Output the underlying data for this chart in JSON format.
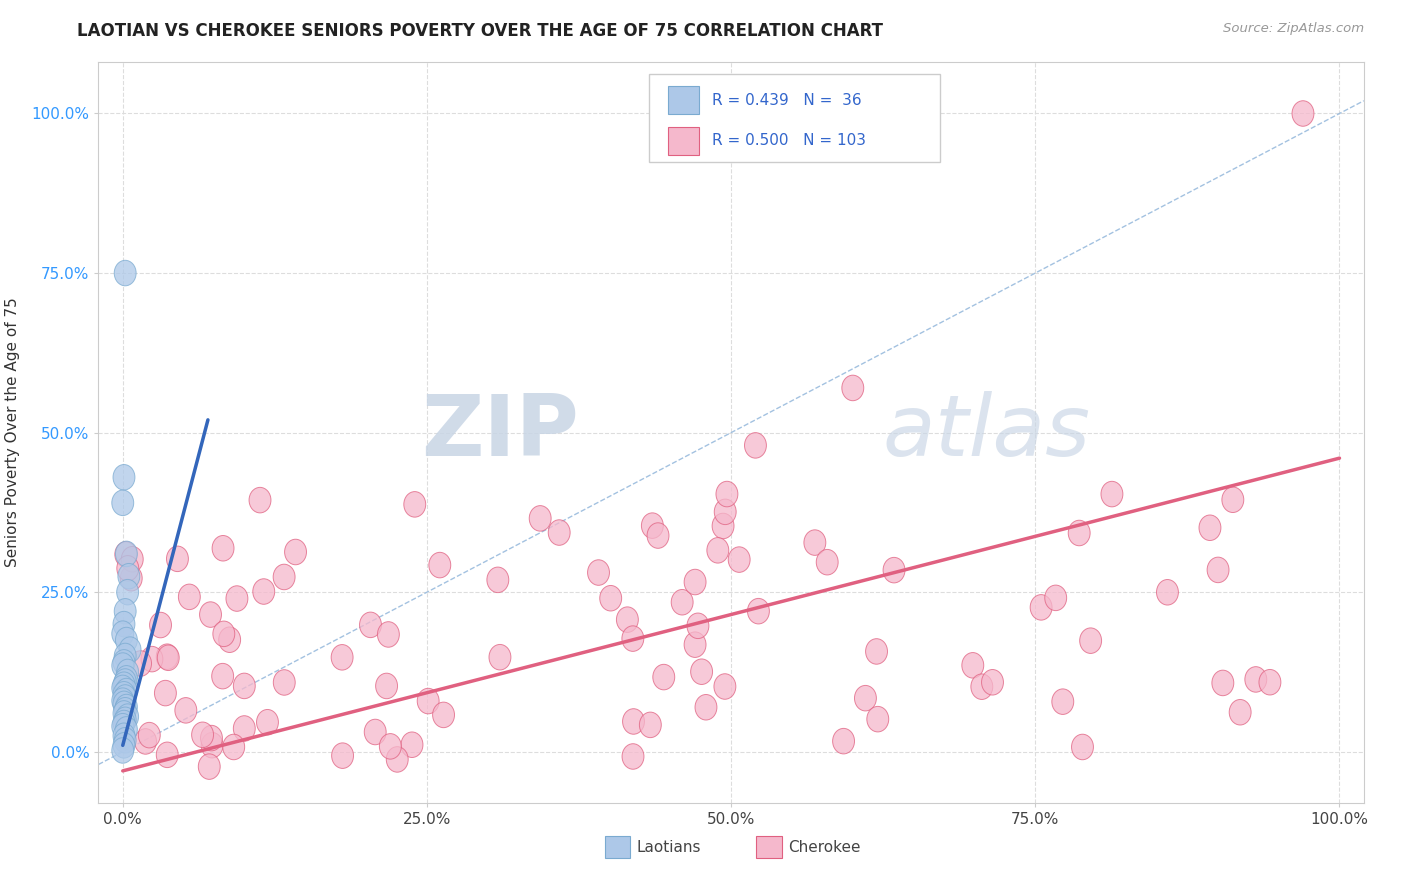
{
  "title": "LAOTIAN VS CHEROKEE SENIORS POVERTY OVER THE AGE OF 75 CORRELATION CHART",
  "source_text": "Source: ZipAtlas.com",
  "ylabel": "Seniors Poverty Over the Age of 75",
  "xlim": [
    -0.02,
    1.02
  ],
  "ylim": [
    -0.08,
    1.08
  ],
  "xticks": [
    0,
    0.25,
    0.5,
    0.75,
    1.0
  ],
  "yticks": [
    0,
    0.25,
    0.5,
    0.75,
    1.0
  ],
  "xtick_labels": [
    "0.0%",
    "25.0%",
    "50.0%",
    "75.0%",
    "100.0%"
  ],
  "ytick_labels": [
    "0.0%",
    "25.0%",
    "50.0%",
    "75.0%",
    "100.0%"
  ],
  "laotian_color": "#adc8e8",
  "laotian_edge_color": "#7aaad0",
  "cherokee_color": "#f5b8cc",
  "cherokee_edge_color": "#e06080",
  "laotian_line_color": "#3366bb",
  "cherokee_line_color": "#e06080",
  "diag_line_color": "#99bbdd",
  "legend_R_color": "#3366cc",
  "watermark_zip": "ZIP",
  "watermark_atlas": "atlas",
  "watermark_color": "#ccd8e8",
  "background_color": "#ffffff",
  "grid_color": "#dddddd",
  "laotian_R": 0.439,
  "laotian_N": 36,
  "cherokee_R": 0.5,
  "cherokee_N": 103,
  "lao_trend_x0": 0.0,
  "lao_trend_y0": 0.01,
  "lao_trend_x1": 0.07,
  "lao_trend_y1": 0.52,
  "che_trend_x0": 0.0,
  "che_trend_y0": -0.03,
  "che_trend_x1": 1.0,
  "che_trend_y1": 0.46
}
